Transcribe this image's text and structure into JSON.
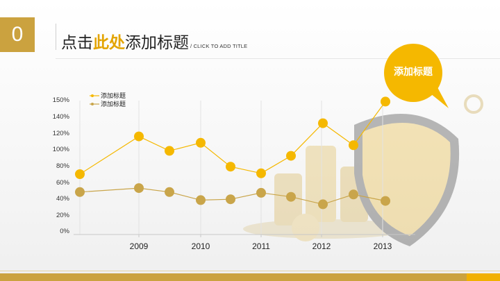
{
  "slide": {
    "number": "0",
    "title_part1": "点击",
    "title_highlight": "此处",
    "title_part2": "添加标题",
    "subtitle": "/ CLICK TO ADD TITLE",
    "bubble_label": "添加标题"
  },
  "colors": {
    "gold": "#cba23f",
    "yellow": "#f5b800",
    "series1": "#f5b800",
    "series2": "#c9a54a",
    "bubble": "#f5b800"
  },
  "chart_data": {
    "type": "line",
    "ylim": [
      0,
      150
    ],
    "y_ticks": [
      "0%",
      "20%",
      "40%",
      "60%",
      "80%",
      "100%",
      "120%",
      "140%",
      "150%"
    ],
    "x_tick_labels": [
      "2009",
      "2010",
      "2011",
      "2012",
      "2013"
    ],
    "series": [
      {
        "name": "添加标题",
        "values": [
          70,
          116,
          98,
          108,
          79,
          71,
          92,
          132,
          105,
          149
        ]
      },
      {
        "name": "添加标题",
        "values": [
          48,
          53,
          48,
          38,
          39,
          47,
          42,
          33,
          45,
          37
        ]
      }
    ],
    "grid": "vertical",
    "legend": "top-left"
  }
}
